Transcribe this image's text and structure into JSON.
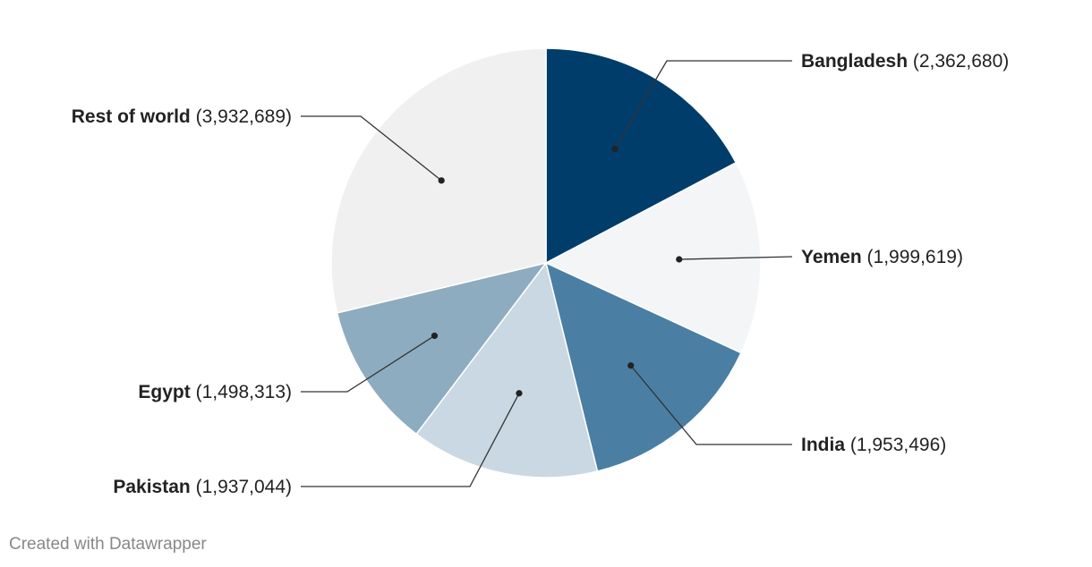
{
  "chart_data": {
    "type": "pie",
    "categories": [
      "Bangladesh",
      "Yemen",
      "India",
      "Pakistan",
      "Egypt",
      "Rest of world"
    ],
    "values": [
      2362680,
      1999619,
      1953496,
      1937044,
      1498313,
      3932689
    ],
    "value_labels": [
      "(2,362,680)",
      "(1,999,619)",
      "(1,953,496)",
      "(1,937,044)",
      "(1,498,313)",
      "(3,932,689)"
    ],
    "colors": [
      "#003d6b",
      "#f3f5f7",
      "#4a7fa3",
      "#c9d8e2",
      "#8eacc0",
      "#f0f0f0"
    ],
    "start_angle": "12 o'clock",
    "direction": "clockwise",
    "legend": "none (direct labels with leader lines)"
  },
  "footer": {
    "credit": "Created with Datawrapper"
  }
}
